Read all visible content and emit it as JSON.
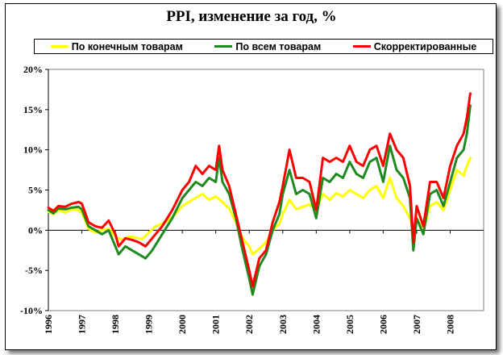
{
  "chart_data": {
    "type": "line",
    "title": "PPI, изменение за год, %",
    "xlabel": "",
    "ylabel": "",
    "xlim": [
      1996.0,
      2009.0
    ],
    "ylim": [
      -10,
      20
    ],
    "y_ticks": [
      -10,
      -5,
      0,
      5,
      10,
      15,
      20
    ],
    "y_tick_labels": [
      "-10%",
      "-5%",
      "0%",
      "5%",
      "10%",
      "15%",
      "20%"
    ],
    "x_ticks": [
      1996,
      1997,
      1998,
      1999,
      2000,
      2001,
      2002,
      2003,
      2004,
      2005,
      2006,
      2007,
      2008
    ],
    "x_tick_labels": [
      "1996",
      "1997",
      "1998",
      "1999",
      "2000",
      "2001",
      "2002",
      "2003",
      "2004",
      "2005",
      "2006",
      "2007",
      "2008"
    ],
    "legend_position": "top",
    "grid": false,
    "series": [
      {
        "name": "По конечным товарам",
        "color": "#ffff00",
        "points": [
          [
            1996.0,
            2.3
          ],
          [
            1996.15,
            2.0
          ],
          [
            1996.3,
            2.5
          ],
          [
            1996.5,
            2.2
          ],
          [
            1996.7,
            2.6
          ],
          [
            1996.9,
            2.5
          ],
          [
            1997.0,
            2.2
          ],
          [
            1997.2,
            0.2
          ],
          [
            1997.4,
            -0.3
          ],
          [
            1997.6,
            0.0
          ],
          [
            1997.8,
            0.2
          ],
          [
            1998.0,
            -0.8
          ],
          [
            1998.2,
            -1.2
          ],
          [
            1998.4,
            -0.8
          ],
          [
            1998.6,
            -0.9
          ],
          [
            1998.8,
            -1.1
          ],
          [
            1999.0,
            -0.3
          ],
          [
            1999.2,
            0.5
          ],
          [
            1999.5,
            1.0
          ],
          [
            1999.8,
            2.0
          ],
          [
            2000.0,
            3.0
          ],
          [
            2000.3,
            3.8
          ],
          [
            2000.6,
            4.5
          ],
          [
            2000.8,
            3.8
          ],
          [
            2001.0,
            4.2
          ],
          [
            2001.2,
            3.5
          ],
          [
            2001.4,
            2.7
          ],
          [
            2001.6,
            1.0
          ],
          [
            2001.8,
            -1.0
          ],
          [
            2002.0,
            -2.0
          ],
          [
            2002.1,
            -3.0
          ],
          [
            2002.3,
            -2.3
          ],
          [
            2002.5,
            -1.5
          ],
          [
            2002.7,
            0.0
          ],
          [
            2002.9,
            0.8
          ],
          [
            2003.0,
            2.0
          ],
          [
            2003.2,
            3.8
          ],
          [
            2003.4,
            2.6
          ],
          [
            2003.6,
            2.9
          ],
          [
            2003.8,
            3.2
          ],
          [
            2004.0,
            2.5
          ],
          [
            2004.2,
            4.5
          ],
          [
            2004.4,
            3.8
          ],
          [
            2004.6,
            4.6
          ],
          [
            2004.8,
            4.2
          ],
          [
            2005.0,
            5.0
          ],
          [
            2005.2,
            4.5
          ],
          [
            2005.4,
            4.0
          ],
          [
            2005.6,
            5.0
          ],
          [
            2005.8,
            5.5
          ],
          [
            2006.0,
            4.0
          ],
          [
            2006.2,
            6.5
          ],
          [
            2006.4,
            4.0
          ],
          [
            2006.6,
            3.0
          ],
          [
            2006.8,
            1.5
          ],
          [
            2006.9,
            0.0
          ],
          [
            2007.0,
            1.5
          ],
          [
            2007.2,
            0.0
          ],
          [
            2007.4,
            3.0
          ],
          [
            2007.6,
            3.5
          ],
          [
            2007.8,
            2.5
          ],
          [
            2008.0,
            5.0
          ],
          [
            2008.2,
            7.5
          ],
          [
            2008.4,
            6.8
          ],
          [
            2008.5,
            8.0
          ],
          [
            2008.6,
            9.0
          ]
        ]
      },
      {
        "name": "По всем товарам",
        "color": "#1f8a1f",
        "points": [
          [
            1996.0,
            2.5
          ],
          [
            1996.15,
            2.1
          ],
          [
            1996.3,
            2.7
          ],
          [
            1996.5,
            2.6
          ],
          [
            1996.7,
            2.8
          ],
          [
            1996.9,
            2.9
          ],
          [
            1997.0,
            2.6
          ],
          [
            1997.2,
            0.5
          ],
          [
            1997.4,
            0.0
          ],
          [
            1997.6,
            -0.5
          ],
          [
            1997.8,
            0.0
          ],
          [
            1998.0,
            -2.0
          ],
          [
            1998.1,
            -3.0
          ],
          [
            1998.3,
            -2.0
          ],
          [
            1998.5,
            -2.5
          ],
          [
            1998.7,
            -3.0
          ],
          [
            1998.9,
            -3.5
          ],
          [
            1999.1,
            -2.5
          ],
          [
            1999.4,
            -0.5
          ],
          [
            1999.7,
            1.5
          ],
          [
            2000.0,
            4.0
          ],
          [
            2000.2,
            5.0
          ],
          [
            2000.4,
            6.0
          ],
          [
            2000.6,
            5.5
          ],
          [
            2000.8,
            6.5
          ],
          [
            2001.0,
            6.0
          ],
          [
            2001.1,
            9.0
          ],
          [
            2001.2,
            6.0
          ],
          [
            2001.4,
            4.5
          ],
          [
            2001.6,
            1.5
          ],
          [
            2001.8,
            -2.5
          ],
          [
            2002.0,
            -6.0
          ],
          [
            2002.1,
            -8.0
          ],
          [
            2002.3,
            -4.5
          ],
          [
            2002.5,
            -3.0
          ],
          [
            2002.7,
            0.0
          ],
          [
            2002.9,
            2.0
          ],
          [
            2003.0,
            4.5
          ],
          [
            2003.2,
            7.5
          ],
          [
            2003.4,
            4.5
          ],
          [
            2003.6,
            5.0
          ],
          [
            2003.8,
            4.5
          ],
          [
            2004.0,
            1.5
          ],
          [
            2004.2,
            6.5
          ],
          [
            2004.4,
            6.0
          ],
          [
            2004.6,
            7.0
          ],
          [
            2004.8,
            6.5
          ],
          [
            2005.0,
            8.5
          ],
          [
            2005.2,
            7.0
          ],
          [
            2005.4,
            6.5
          ],
          [
            2005.6,
            8.5
          ],
          [
            2005.8,
            9.0
          ],
          [
            2006.0,
            6.0
          ],
          [
            2006.2,
            10.5
          ],
          [
            2006.4,
            7.5
          ],
          [
            2006.6,
            6.5
          ],
          [
            2006.8,
            4.0
          ],
          [
            2006.9,
            -2.5
          ],
          [
            2007.0,
            1.5
          ],
          [
            2007.2,
            -0.5
          ],
          [
            2007.4,
            4.5
          ],
          [
            2007.6,
            5.0
          ],
          [
            2007.8,
            3.0
          ],
          [
            2008.0,
            6.0
          ],
          [
            2008.2,
            9.0
          ],
          [
            2008.4,
            10.0
          ],
          [
            2008.5,
            12.0
          ],
          [
            2008.6,
            15.5
          ]
        ]
      },
      {
        "name": "Скорректированные",
        "color": "#ff0000",
        "points": [
          [
            1996.0,
            2.8
          ],
          [
            1996.15,
            2.4
          ],
          [
            1996.3,
            3.0
          ],
          [
            1996.5,
            2.9
          ],
          [
            1996.7,
            3.3
          ],
          [
            1996.9,
            3.5
          ],
          [
            1997.0,
            3.3
          ],
          [
            1997.2,
            1.0
          ],
          [
            1997.4,
            0.5
          ],
          [
            1997.6,
            0.3
          ],
          [
            1997.8,
            1.2
          ],
          [
            1998.0,
            -0.5
          ],
          [
            1998.1,
            -2.0
          ],
          [
            1998.3,
            -1.0
          ],
          [
            1998.5,
            -1.2
          ],
          [
            1998.7,
            -1.5
          ],
          [
            1998.9,
            -2.0
          ],
          [
            1999.1,
            -1.0
          ],
          [
            1999.4,
            0.5
          ],
          [
            1999.7,
            2.5
          ],
          [
            2000.0,
            5.0
          ],
          [
            2000.2,
            6.0
          ],
          [
            2000.4,
            8.0
          ],
          [
            2000.6,
            7.0
          ],
          [
            2000.8,
            8.0
          ],
          [
            2001.0,
            7.5
          ],
          [
            2001.1,
            10.5
          ],
          [
            2001.2,
            7.5
          ],
          [
            2001.4,
            5.5
          ],
          [
            2001.6,
            2.0
          ],
          [
            2001.8,
            -1.5
          ],
          [
            2002.0,
            -5.0
          ],
          [
            2002.1,
            -7.0
          ],
          [
            2002.3,
            -3.5
          ],
          [
            2002.5,
            -2.5
          ],
          [
            2002.7,
            1.0
          ],
          [
            2002.9,
            3.5
          ],
          [
            2003.0,
            5.5
          ],
          [
            2003.2,
            10.0
          ],
          [
            2003.4,
            6.5
          ],
          [
            2003.6,
            6.5
          ],
          [
            2003.8,
            6.0
          ],
          [
            2004.0,
            2.5
          ],
          [
            2004.2,
            9.0
          ],
          [
            2004.4,
            8.5
          ],
          [
            2004.6,
            9.0
          ],
          [
            2004.8,
            8.5
          ],
          [
            2005.0,
            10.5
          ],
          [
            2005.2,
            8.5
          ],
          [
            2005.4,
            8.0
          ],
          [
            2005.6,
            10.0
          ],
          [
            2005.8,
            10.5
          ],
          [
            2006.0,
            8.0
          ],
          [
            2006.2,
            12.0
          ],
          [
            2006.4,
            10.0
          ],
          [
            2006.6,
            9.0
          ],
          [
            2006.8,
            5.5
          ],
          [
            2006.9,
            -1.5
          ],
          [
            2007.0,
            3.0
          ],
          [
            2007.2,
            0.5
          ],
          [
            2007.4,
            6.0
          ],
          [
            2007.6,
            6.0
          ],
          [
            2007.8,
            4.0
          ],
          [
            2008.0,
            8.0
          ],
          [
            2008.2,
            10.5
          ],
          [
            2008.4,
            12.0
          ],
          [
            2008.5,
            14.0
          ],
          [
            2008.6,
            17.0
          ]
        ]
      }
    ]
  }
}
